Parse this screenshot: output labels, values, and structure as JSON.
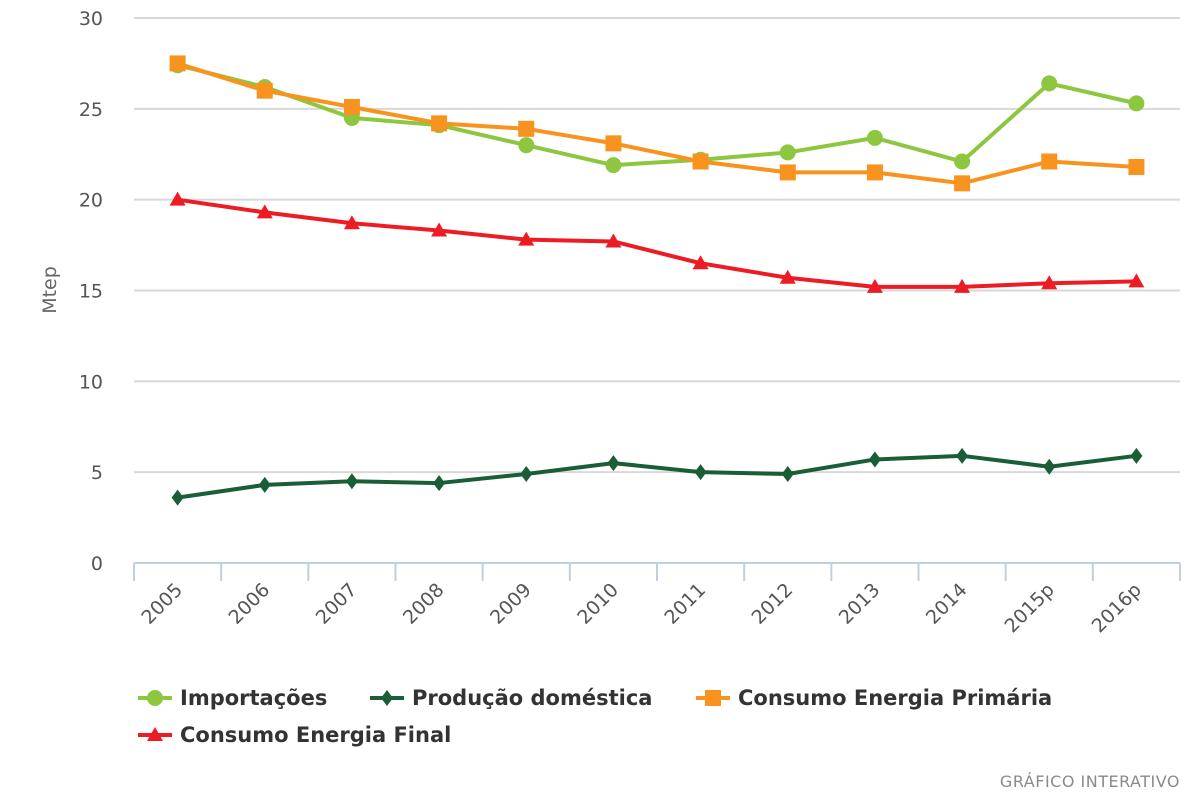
{
  "chart_data": {
    "type": "line",
    "title": "",
    "xlabel": "",
    "ylabel": "Mtep",
    "ylim": [
      0,
      30
    ],
    "yticks": [
      0,
      5,
      10,
      15,
      20,
      25,
      30
    ],
    "grid": true,
    "legend_position": "bottom-left",
    "categories": [
      "2005",
      "2006",
      "2007",
      "2008",
      "2009",
      "2010",
      "2011",
      "2012",
      "2013",
      "2014",
      "2015p",
      "2016p"
    ],
    "series": [
      {
        "name": "Importações",
        "color": "#8dc63f",
        "marker": "circle",
        "values": [
          27.4,
          26.2,
          24.5,
          24.1,
          23.0,
          21.9,
          22.2,
          22.6,
          23.4,
          22.1,
          26.4,
          25.3
        ]
      },
      {
        "name": "Produção doméstica",
        "color": "#1a5e36",
        "marker": "diamond",
        "values": [
          3.6,
          4.3,
          4.5,
          4.4,
          4.9,
          5.5,
          5.0,
          4.9,
          5.7,
          5.9,
          5.3,
          5.9
        ]
      },
      {
        "name": "Consumo Energia Primária",
        "color": "#f7931e",
        "marker": "square",
        "values": [
          27.5,
          26.0,
          25.1,
          24.2,
          23.9,
          23.1,
          22.1,
          21.5,
          21.5,
          20.9,
          22.1,
          21.8
        ]
      },
      {
        "name": "Consumo Energia Final",
        "color": "#ed1c24",
        "marker": "triangle",
        "values": [
          20.0,
          19.3,
          18.7,
          18.3,
          17.8,
          17.7,
          16.5,
          15.7,
          15.2,
          15.2,
          15.4,
          15.5
        ]
      }
    ]
  },
  "footer": {
    "label": "GRÁFICO INTERATIVO"
  },
  "colors": {
    "grid": "#d8d8d8",
    "axis": "#c0d0e0",
    "text": "#555555"
  }
}
